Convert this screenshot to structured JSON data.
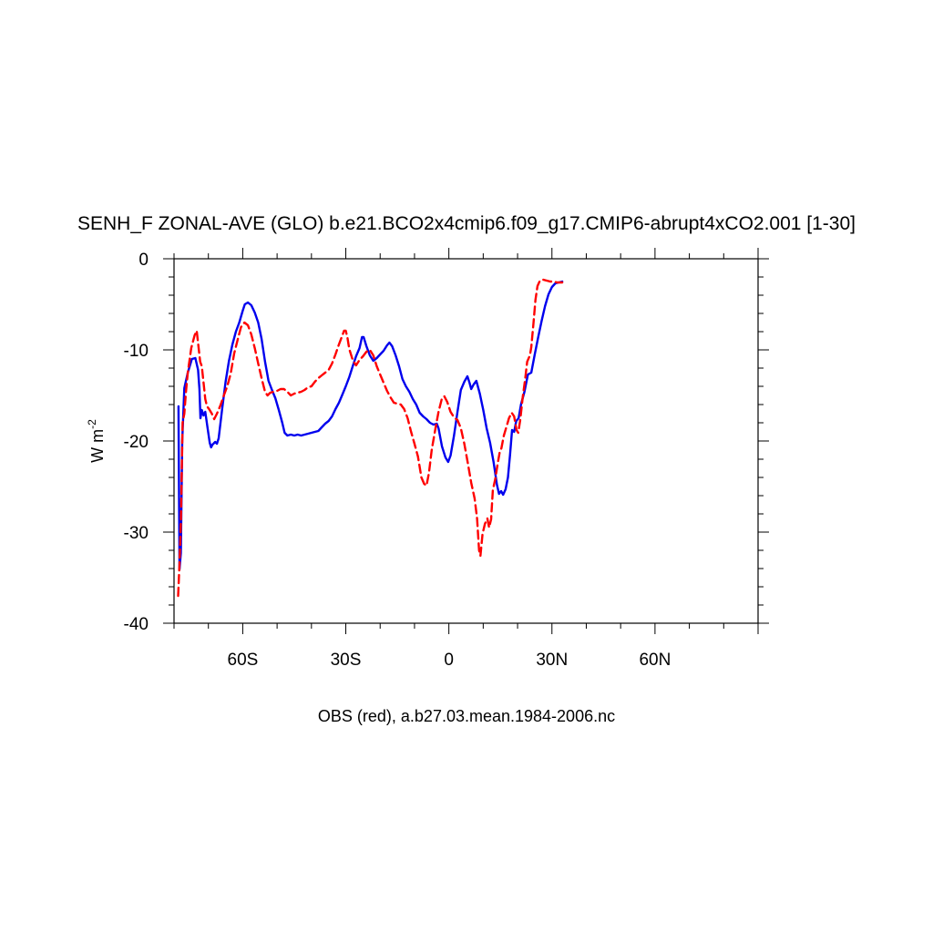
{
  "chart_data": {
    "type": "line",
    "title": "SENH_F ZONAL-AVE (GLO) b.e21.BCO2x4cmip6.f09_g17.CMIP6-abrupt4xCO2.001 [1-30]",
    "xlabel": "OBS (red), a.b27.03.mean.1984-2006.nc",
    "ylabel_base": "W m",
    "ylabel_sup": "-2",
    "xlim": [
      -80,
      90
    ],
    "ylim": [
      -40,
      0
    ],
    "x_ticks": [
      {
        "value": -60,
        "label": "60S"
      },
      {
        "value": -30,
        "label": "30S"
      },
      {
        "value": 0,
        "label": "0"
      },
      {
        "value": 30,
        "label": "30N"
      },
      {
        "value": 60,
        "label": "60N"
      }
    ],
    "y_ticks": [
      {
        "value": 0,
        "label": "0"
      },
      {
        "value": -10,
        "label": "-10"
      },
      {
        "value": -20,
        "label": "-20"
      },
      {
        "value": -30,
        "label": "-30"
      },
      {
        "value": -40,
        "label": "-40"
      }
    ],
    "grid": false,
    "series": [
      {
        "color": "#0000ee",
        "dash": "solid",
        "points": [
          [
            -78.7,
            -16.2
          ],
          [
            -78.4,
            -34.1
          ],
          [
            -78.0,
            -32.3
          ],
          [
            -77.6,
            -20.0
          ],
          [
            -77.0,
            -14.2
          ],
          [
            -76.0,
            -12.5
          ],
          [
            -74.8,
            -11.0
          ],
          [
            -73.8,
            -10.9
          ],
          [
            -73.0,
            -12.2
          ],
          [
            -72.6,
            -14.3
          ],
          [
            -72.3,
            -17.5
          ],
          [
            -71.9,
            -16.6
          ],
          [
            -71.4,
            -17.2
          ],
          [
            -70.9,
            -16.8
          ],
          [
            -70.2,
            -18.7
          ],
          [
            -69.6,
            -20.2
          ],
          [
            -69.2,
            -20.7
          ],
          [
            -68.8,
            -20.4
          ],
          [
            -68.0,
            -20.1
          ],
          [
            -67.5,
            -20.3
          ],
          [
            -67.0,
            -19.7
          ],
          [
            -66.0,
            -16.5
          ],
          [
            -65.0,
            -13.5
          ],
          [
            -64.0,
            -11.2
          ],
          [
            -63.0,
            -9.4
          ],
          [
            -62.0,
            -8.0
          ],
          [
            -61.0,
            -7.0
          ],
          [
            -60.0,
            -5.7
          ],
          [
            -59.4,
            -5.0
          ],
          [
            -58.5,
            -4.8
          ],
          [
            -57.5,
            -5.1
          ],
          [
            -56.5,
            -5.9
          ],
          [
            -55.5,
            -7.0
          ],
          [
            -54.5,
            -8.8
          ],
          [
            -53.5,
            -11.3
          ],
          [
            -52.5,
            -13.4
          ],
          [
            -51.5,
            -14.4
          ],
          [
            -50.5,
            -15.3
          ],
          [
            -49.5,
            -16.6
          ],
          [
            -48.5,
            -18.0
          ],
          [
            -47.8,
            -19.1
          ],
          [
            -47.0,
            -19.4
          ],
          [
            -46.0,
            -19.3
          ],
          [
            -45.0,
            -19.4
          ],
          [
            -44.0,
            -19.3
          ],
          [
            -43.0,
            -19.4
          ],
          [
            -42.0,
            -19.3
          ],
          [
            -41.0,
            -19.2
          ],
          [
            -40.0,
            -19.1
          ],
          [
            -39.0,
            -19.0
          ],
          [
            -38.0,
            -18.9
          ],
          [
            -37.0,
            -18.5
          ],
          [
            -36.0,
            -18.1
          ],
          [
            -35.0,
            -17.8
          ],
          [
            -34.0,
            -17.3
          ],
          [
            -33.0,
            -16.5
          ],
          [
            -32.0,
            -15.8
          ],
          [
            -31.0,
            -14.9
          ],
          [
            -30.0,
            -14.0
          ],
          [
            -29.0,
            -13.0
          ],
          [
            -28.0,
            -11.8
          ],
          [
            -27.0,
            -10.7
          ],
          [
            -26.0,
            -9.8
          ],
          [
            -25.3,
            -8.6
          ],
          [
            -24.8,
            -8.6
          ],
          [
            -24.0,
            -9.6
          ],
          [
            -23.0,
            -10.6
          ],
          [
            -22.0,
            -11.2
          ],
          [
            -21.0,
            -10.9
          ],
          [
            -20.0,
            -10.5
          ],
          [
            -19.0,
            -10.1
          ],
          [
            -18.0,
            -9.5
          ],
          [
            -17.3,
            -9.2
          ],
          [
            -16.5,
            -9.6
          ],
          [
            -15.5,
            -10.6
          ],
          [
            -14.5,
            -11.8
          ],
          [
            -13.5,
            -13.2
          ],
          [
            -12.5,
            -14.0
          ],
          [
            -11.5,
            -14.6
          ],
          [
            -10.5,
            -15.4
          ],
          [
            -9.5,
            -16.0
          ],
          [
            -8.5,
            -16.9
          ],
          [
            -7.5,
            -17.3
          ],
          [
            -6.5,
            -17.6
          ],
          [
            -5.5,
            -18.0
          ],
          [
            -4.5,
            -18.2
          ],
          [
            -3.5,
            -18.1
          ],
          [
            -3.0,
            -18.6
          ],
          [
            -2.0,
            -20.6
          ],
          [
            -1.0,
            -21.8
          ],
          [
            -0.2,
            -22.3
          ],
          [
            0.5,
            -21.6
          ],
          [
            1.5,
            -19.4
          ],
          [
            2.5,
            -16.8
          ],
          [
            3.5,
            -14.4
          ],
          [
            4.5,
            -13.5
          ],
          [
            5.4,
            -12.9
          ],
          [
            6.0,
            -13.6
          ],
          [
            6.5,
            -14.3
          ],
          [
            7.2,
            -13.8
          ],
          [
            8.0,
            -13.4
          ],
          [
            9.0,
            -14.8
          ],
          [
            10.0,
            -16.6
          ],
          [
            11.0,
            -18.6
          ],
          [
            12.0,
            -20.2
          ],
          [
            13.0,
            -22.3
          ],
          [
            14.0,
            -24.8
          ],
          [
            14.6,
            -25.8
          ],
          [
            15.2,
            -25.5
          ],
          [
            15.8,
            -25.9
          ],
          [
            16.5,
            -25.3
          ],
          [
            17.2,
            -24.0
          ],
          [
            17.8,
            -21.5
          ],
          [
            18.4,
            -18.8
          ],
          [
            19.0,
            -19.0
          ],
          [
            19.6,
            -17.8
          ],
          [
            20.3,
            -17.5
          ],
          [
            21.0,
            -16.0
          ],
          [
            22.0,
            -14.6
          ],
          [
            23.0,
            -12.7
          ],
          [
            24.0,
            -12.5
          ],
          [
            25.0,
            -10.5
          ],
          [
            26.0,
            -8.6
          ],
          [
            27.0,
            -6.8
          ],
          [
            28.0,
            -5.2
          ],
          [
            29.0,
            -3.9
          ],
          [
            30.0,
            -3.1
          ],
          [
            31.0,
            -2.7
          ],
          [
            32.0,
            -2.6
          ],
          [
            33.0,
            -2.5
          ]
        ]
      },
      {
        "color": "#ff0000",
        "dash": "dashed",
        "points": [
          [
            -78.8,
            -37.0
          ],
          [
            -78.4,
            -33.5
          ],
          [
            -78.0,
            -29.0
          ],
          [
            -77.5,
            -18.0
          ],
          [
            -77.0,
            -17.0
          ],
          [
            -76.5,
            -14.5
          ],
          [
            -76.0,
            -12.5
          ],
          [
            -75.0,
            -9.8
          ],
          [
            -74.0,
            -8.4
          ],
          [
            -73.4,
            -7.9
          ],
          [
            -72.9,
            -9.6
          ],
          [
            -72.4,
            -11.3
          ],
          [
            -71.9,
            -11.8
          ],
          [
            -71.4,
            -13.6
          ],
          [
            -70.9,
            -15.4
          ],
          [
            -70.4,
            -16.2
          ],
          [
            -69.8,
            -16.5
          ],
          [
            -69.0,
            -17.0
          ],
          [
            -68.3,
            -17.6
          ],
          [
            -67.5,
            -17.0
          ],
          [
            -66.5,
            -16.1
          ],
          [
            -65.5,
            -15.0
          ],
          [
            -64.5,
            -14.0
          ],
          [
            -63.5,
            -12.6
          ],
          [
            -62.5,
            -10.4
          ],
          [
            -61.5,
            -8.9
          ],
          [
            -60.5,
            -7.5
          ],
          [
            -59.5,
            -7.0
          ],
          [
            -58.5,
            -7.3
          ],
          [
            -57.5,
            -8.3
          ],
          [
            -56.5,
            -9.8
          ],
          [
            -55.5,
            -11.5
          ],
          [
            -54.5,
            -13.1
          ],
          [
            -53.5,
            -14.6
          ],
          [
            -52.8,
            -15.0
          ],
          [
            -52.0,
            -14.7
          ],
          [
            -51.0,
            -14.6
          ],
          [
            -50.0,
            -14.5
          ],
          [
            -49.0,
            -14.3
          ],
          [
            -48.0,
            -14.3
          ],
          [
            -47.0,
            -14.6
          ],
          [
            -46.0,
            -15.0
          ],
          [
            -45.0,
            -14.8
          ],
          [
            -44.0,
            -14.7
          ],
          [
            -43.0,
            -14.6
          ],
          [
            -42.0,
            -14.4
          ],
          [
            -41.0,
            -14.1
          ],
          [
            -40.0,
            -14.0
          ],
          [
            -39.0,
            -13.5
          ],
          [
            -38.0,
            -13.1
          ],
          [
            -37.0,
            -12.8
          ],
          [
            -36.0,
            -12.5
          ],
          [
            -35.0,
            -12.2
          ],
          [
            -34.0,
            -11.5
          ],
          [
            -33.0,
            -10.5
          ],
          [
            -32.0,
            -9.4
          ],
          [
            -31.0,
            -8.4
          ],
          [
            -30.5,
            -7.9
          ],
          [
            -30.0,
            -7.9
          ],
          [
            -29.5,
            -8.7
          ],
          [
            -29.0,
            -9.9
          ],
          [
            -28.0,
            -11.1
          ],
          [
            -27.0,
            -11.7
          ],
          [
            -26.0,
            -11.1
          ],
          [
            -25.0,
            -10.7
          ],
          [
            -24.0,
            -10.2
          ],
          [
            -23.0,
            -10.0
          ],
          [
            -22.0,
            -10.6
          ],
          [
            -21.0,
            -11.8
          ],
          [
            -20.0,
            -12.7
          ],
          [
            -19.0,
            -13.6
          ],
          [
            -18.0,
            -14.5
          ],
          [
            -17.0,
            -15.2
          ],
          [
            -16.0,
            -15.8
          ],
          [
            -15.0,
            -15.9
          ],
          [
            -14.0,
            -16.0
          ],
          [
            -13.0,
            -16.5
          ],
          [
            -12.0,
            -17.5
          ],
          [
            -11.0,
            -19.0
          ],
          [
            -10.0,
            -20.3
          ],
          [
            -9.0,
            -21.7
          ],
          [
            -8.0,
            -24.0
          ],
          [
            -7.2,
            -24.7
          ],
          [
            -6.5,
            -24.9
          ],
          [
            -5.8,
            -23.5
          ],
          [
            -5.0,
            -21.0
          ],
          [
            -4.0,
            -18.8
          ],
          [
            -3.0,
            -16.8
          ],
          [
            -2.0,
            -15.3
          ],
          [
            -1.3,
            -15.1
          ],
          [
            -0.5,
            -15.7
          ],
          [
            0.5,
            -16.8
          ],
          [
            1.5,
            -17.4
          ],
          [
            2.5,
            -17.7
          ],
          [
            3.5,
            -18.6
          ],
          [
            4.5,
            -20.3
          ],
          [
            5.5,
            -22.4
          ],
          [
            6.5,
            -24.6
          ],
          [
            7.5,
            -26.3
          ],
          [
            8.2,
            -28.5
          ],
          [
            8.8,
            -32.0
          ],
          [
            9.2,
            -32.6
          ],
          [
            9.8,
            -30.2
          ],
          [
            10.5,
            -29.1
          ],
          [
            11.2,
            -28.5
          ],
          [
            11.7,
            -29.5
          ],
          [
            12.3,
            -28.6
          ],
          [
            12.8,
            -25.4
          ],
          [
            13.5,
            -24.2
          ],
          [
            14.2,
            -22.5
          ],
          [
            14.8,
            -21.2
          ],
          [
            15.3,
            -20.8
          ],
          [
            16.0,
            -19.4
          ],
          [
            16.8,
            -18.4
          ],
          [
            17.5,
            -17.5
          ],
          [
            18.3,
            -16.9
          ],
          [
            19.0,
            -17.3
          ],
          [
            19.7,
            -18.8
          ],
          [
            20.2,
            -19.1
          ],
          [
            20.8,
            -17.6
          ],
          [
            21.5,
            -15.2
          ],
          [
            22.2,
            -13.2
          ],
          [
            22.8,
            -11.3
          ],
          [
            23.6,
            -10.6
          ],
          [
            24.0,
            -9.7
          ],
          [
            24.6,
            -7.2
          ],
          [
            25.2,
            -4.5
          ],
          [
            25.8,
            -3.0
          ],
          [
            26.5,
            -2.4
          ],
          [
            27.5,
            -2.3
          ],
          [
            28.5,
            -2.4
          ],
          [
            29.5,
            -2.5
          ],
          [
            30.5,
            -2.5
          ],
          [
            31.5,
            -2.6
          ],
          [
            33.0,
            -2.6
          ]
        ]
      }
    ]
  }
}
